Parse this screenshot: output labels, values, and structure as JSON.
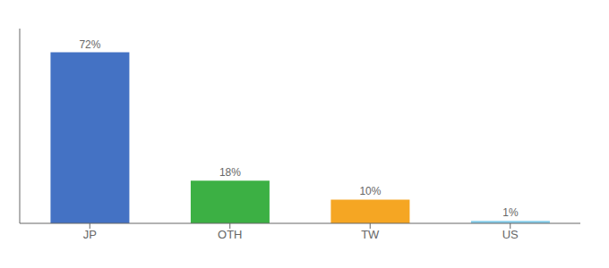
{
  "chart_data": {
    "type": "bar",
    "categories": [
      "JP",
      "OTH",
      "TW",
      "US"
    ],
    "values": [
      72,
      18,
      10,
      1
    ],
    "value_labels": [
      "72%",
      "18%",
      "10%",
      "1%"
    ],
    "colors": [
      "#4472c4",
      "#3cb044",
      "#f5a623",
      "#87ceeb"
    ],
    "ylim": [
      0,
      82
    ],
    "grid": false,
    "data_labels": true,
    "tick_labels": "x"
  }
}
